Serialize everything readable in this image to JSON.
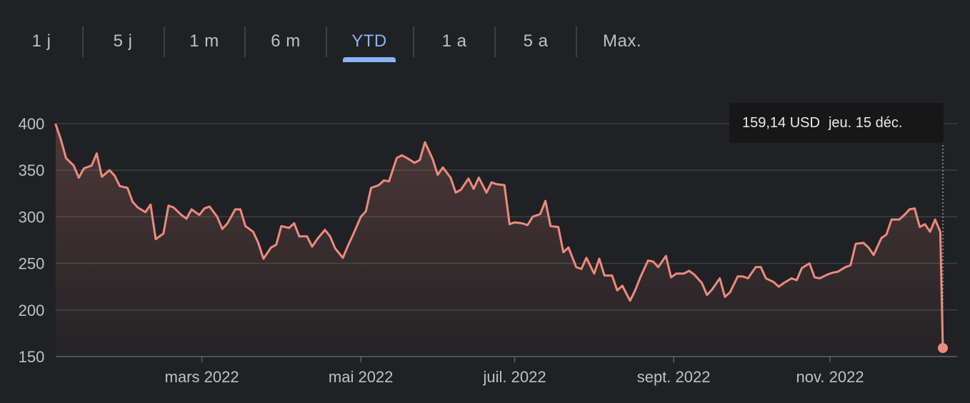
{
  "range_tabs": [
    {
      "label": "1 j",
      "active": false
    },
    {
      "label": "5 j",
      "active": false
    },
    {
      "label": "1 m",
      "active": false
    },
    {
      "label": "6 m",
      "active": false
    },
    {
      "label": "YTD",
      "active": true
    },
    {
      "label": "1 a",
      "active": false
    },
    {
      "label": "5 a",
      "active": false
    },
    {
      "label": "Max.",
      "active": false
    }
  ],
  "tooltip": {
    "price": "159,14 USD",
    "date": "jeu. 15 déc."
  },
  "colors": {
    "background": "#202124",
    "line": "#ee8a7d",
    "grid": "#3c4043",
    "active_tab": "#8ab4f8",
    "text": "#bdc1c6"
  },
  "chart_data": {
    "type": "area",
    "title": "",
    "xlabel": "",
    "ylabel": "",
    "ylim": [
      150,
      400
    ],
    "y_ticks": [
      400,
      350,
      300,
      250,
      200,
      150
    ],
    "x_range": [
      "2022-01-03",
      "2022-12-15"
    ],
    "x_tick_labels": [
      {
        "date": "2022-03-01",
        "label": "mars 2022"
      },
      {
        "date": "2022-05-02",
        "label": "mai 2022"
      },
      {
        "date": "2022-07-01",
        "label": "juil. 2022"
      },
      {
        "date": "2022-09-01",
        "label": "sept. 2022"
      },
      {
        "date": "2022-11-01",
        "label": "nov. 2022"
      }
    ],
    "grid": true,
    "series": [
      {
        "values": [
          [
            "2022-01-03",
            399
          ],
          [
            "2022-01-05",
            383
          ],
          [
            "2022-01-07",
            363
          ],
          [
            "2022-01-10",
            355
          ],
          [
            "2022-01-12",
            342
          ],
          [
            "2022-01-14",
            352
          ],
          [
            "2022-01-17",
            355
          ],
          [
            "2022-01-19",
            368
          ],
          [
            "2022-01-21",
            343
          ],
          [
            "2022-01-24",
            350
          ],
          [
            "2022-01-26",
            344
          ],
          [
            "2022-01-28",
            333
          ],
          [
            "2022-01-31",
            331
          ],
          [
            "2022-02-02",
            316
          ],
          [
            "2022-02-04",
            310
          ],
          [
            "2022-02-07",
            305
          ],
          [
            "2022-02-09",
            313
          ],
          [
            "2022-02-11",
            276
          ],
          [
            "2022-02-14",
            282
          ],
          [
            "2022-02-16",
            312
          ],
          [
            "2022-02-18",
            310
          ],
          [
            "2022-02-21",
            302
          ],
          [
            "2022-02-23",
            298
          ],
          [
            "2022-02-25",
            308
          ],
          [
            "2022-02-28",
            302
          ],
          [
            "2022-03-02",
            309
          ],
          [
            "2022-03-04",
            311
          ],
          [
            "2022-03-07",
            300
          ],
          [
            "2022-03-09",
            287
          ],
          [
            "2022-03-11",
            293
          ],
          [
            "2022-03-14",
            308
          ],
          [
            "2022-03-16",
            308
          ],
          [
            "2022-03-18",
            290
          ],
          [
            "2022-03-21",
            284
          ],
          [
            "2022-03-23",
            272
          ],
          [
            "2022-03-25",
            255
          ],
          [
            "2022-03-28",
            267
          ],
          [
            "2022-03-30",
            270
          ],
          [
            "2022-04-01",
            290
          ],
          [
            "2022-04-04",
            288
          ],
          [
            "2022-04-06",
            293
          ],
          [
            "2022-04-08",
            279
          ],
          [
            "2022-04-11",
            279
          ],
          [
            "2022-04-13",
            268
          ],
          [
            "2022-04-15",
            276
          ],
          [
            "2022-04-18",
            286
          ],
          [
            "2022-04-20",
            279
          ],
          [
            "2022-04-22",
            266
          ],
          [
            "2022-04-25",
            256
          ],
          [
            "2022-04-27",
            269
          ],
          [
            "2022-04-29",
            281
          ],
          [
            "2022-05-02",
            300
          ],
          [
            "2022-05-04",
            306
          ],
          [
            "2022-05-06",
            331
          ],
          [
            "2022-05-09",
            334
          ],
          [
            "2022-05-11",
            339
          ],
          [
            "2022-05-13",
            338
          ],
          [
            "2022-05-16",
            363
          ],
          [
            "2022-05-18",
            366
          ],
          [
            "2022-05-20",
            363
          ],
          [
            "2022-05-23",
            358
          ],
          [
            "2022-05-25",
            361
          ],
          [
            "2022-05-27",
            380
          ],
          [
            "2022-05-30",
            362
          ],
          [
            "2022-06-01",
            345
          ],
          [
            "2022-06-03",
            353
          ],
          [
            "2022-06-06",
            342
          ],
          [
            "2022-06-08",
            326
          ],
          [
            "2022-06-10",
            329
          ],
          [
            "2022-06-13",
            341
          ],
          [
            "2022-06-15",
            330
          ],
          [
            "2022-06-17",
            342
          ],
          [
            "2022-06-20",
            326
          ],
          [
            "2022-06-22",
            337
          ],
          [
            "2022-06-24",
            335
          ],
          [
            "2022-06-27",
            334
          ],
          [
            "2022-06-29",
            292
          ],
          [
            "2022-07-01",
            294
          ],
          [
            "2022-07-04",
            293
          ],
          [
            "2022-07-06",
            291
          ],
          [
            "2022-07-08",
            300
          ],
          [
            "2022-07-11",
            303
          ],
          [
            "2022-07-13",
            317
          ],
          [
            "2022-07-15",
            290
          ],
          [
            "2022-07-18",
            289
          ],
          [
            "2022-07-20",
            262
          ],
          [
            "2022-07-22",
            267
          ],
          [
            "2022-07-25",
            246
          ],
          [
            "2022-07-27",
            244
          ],
          [
            "2022-07-29",
            256
          ],
          [
            "2022-08-01",
            239
          ],
          [
            "2022-08-03",
            255
          ],
          [
            "2022-08-05",
            237
          ],
          [
            "2022-08-08",
            237
          ],
          [
            "2022-08-10",
            221
          ],
          [
            "2022-08-12",
            226
          ],
          [
            "2022-08-15",
            210
          ],
          [
            "2022-08-17",
            221
          ],
          [
            "2022-08-19",
            235
          ],
          [
            "2022-08-22",
            253
          ],
          [
            "2022-08-24",
            252
          ],
          [
            "2022-08-26",
            246
          ],
          [
            "2022-08-29",
            258
          ],
          [
            "2022-08-31",
            235
          ],
          [
            "2022-09-02",
            239
          ],
          [
            "2022-09-05",
            239
          ],
          [
            "2022-09-07",
            242
          ],
          [
            "2022-09-09",
            238
          ],
          [
            "2022-09-12",
            229
          ],
          [
            "2022-09-14",
            216
          ],
          [
            "2022-09-16",
            222
          ],
          [
            "2022-09-19",
            234
          ],
          [
            "2022-09-21",
            214
          ],
          [
            "2022-09-23",
            219
          ],
          [
            "2022-09-26",
            236
          ],
          [
            "2022-09-28",
            236
          ],
          [
            "2022-09-30",
            234
          ],
          [
            "2022-10-03",
            246
          ],
          [
            "2022-10-05",
            246
          ],
          [
            "2022-10-07",
            234
          ],
          [
            "2022-10-10",
            230
          ],
          [
            "2022-10-12",
            225
          ],
          [
            "2022-10-14",
            229
          ],
          [
            "2022-10-17",
            234
          ],
          [
            "2022-10-19",
            232
          ],
          [
            "2022-10-21",
            245
          ],
          [
            "2022-10-24",
            250
          ],
          [
            "2022-10-26",
            235
          ],
          [
            "2022-10-28",
            234
          ],
          [
            "2022-10-31",
            238
          ],
          [
            "2022-11-02",
            240
          ],
          [
            "2022-11-04",
            241
          ],
          [
            "2022-11-07",
            246
          ],
          [
            "2022-11-09",
            248
          ],
          [
            "2022-11-11",
            271
          ],
          [
            "2022-11-14",
            272
          ],
          [
            "2022-11-16",
            267
          ],
          [
            "2022-11-18",
            259
          ],
          [
            "2022-11-21",
            277
          ],
          [
            "2022-11-23",
            281
          ],
          [
            "2022-11-25",
            297
          ],
          [
            "2022-11-28",
            297
          ],
          [
            "2022-11-30",
            302
          ],
          [
            "2022-12-02",
            308
          ],
          [
            "2022-12-04",
            309
          ],
          [
            "2022-12-06",
            289
          ],
          [
            "2022-12-08",
            292
          ],
          [
            "2022-12-10",
            284
          ],
          [
            "2022-12-12",
            297
          ],
          [
            "2022-12-14",
            284
          ],
          [
            "2022-12-15",
            159.14
          ]
        ]
      }
    ]
  }
}
